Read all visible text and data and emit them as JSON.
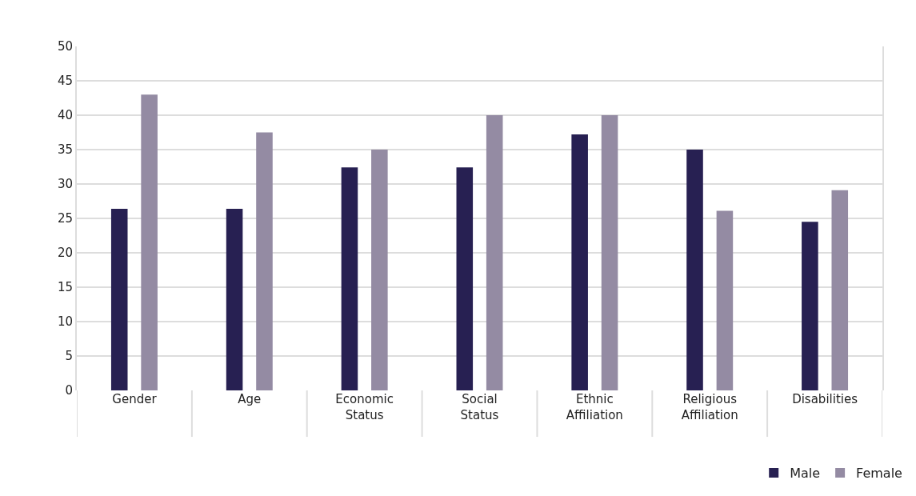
{
  "chart_data": {
    "type": "bar",
    "categories": [
      "Gender",
      "Age",
      "Economic Status",
      "Social Status",
      "Ethnic Affiliation",
      "Religious Affiliation",
      "Disabilities"
    ],
    "series": [
      {
        "name": "Male",
        "color": "#272052",
        "values": [
          26.4,
          26.4,
          32.4,
          32.4,
          37.2,
          35,
          24.5
        ]
      },
      {
        "name": "Female",
        "color": "#948ba3",
        "values": [
          43,
          37.5,
          35,
          40,
          40,
          26.1,
          29.1
        ]
      }
    ],
    "ylim": [
      0,
      50
    ],
    "yticks": [
      0,
      5,
      10,
      15,
      20,
      25,
      30,
      35,
      40,
      45,
      50
    ],
    "grid": "y",
    "legend": "bottom right"
  }
}
